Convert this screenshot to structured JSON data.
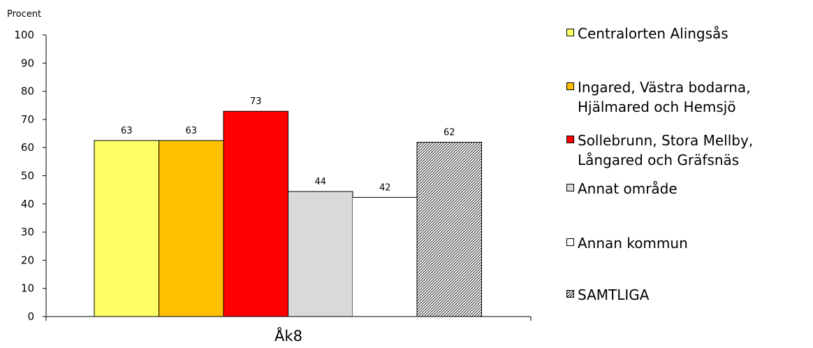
{
  "chart_data": {
    "type": "bar",
    "ylabel": "Procent",
    "ylim": [
      0,
      100
    ],
    "yticks": [
      0,
      10,
      20,
      30,
      40,
      50,
      60,
      70,
      80,
      90,
      100
    ],
    "categories": [
      "Åk8"
    ],
    "grid": false,
    "legend_position": "right",
    "series": [
      {
        "name": "Centralorten Alingsås",
        "values": [
          62.5
        ],
        "label": "63",
        "color": "#FFFF66",
        "pattern": "solid"
      },
      {
        "name": "Ingared, Västra bodarna, Hjälmared och Hemsjö",
        "values": [
          62.5
        ],
        "label": "63",
        "color": "#FFC000",
        "pattern": "solid"
      },
      {
        "name": "Sollebrunn, Stora Mellby, Långared och Gräfsnäs",
        "values": [
          72.9
        ],
        "label": "73",
        "color": "#FF0000",
        "pattern": "solid"
      },
      {
        "name": "Annat område",
        "values": [
          44.4
        ],
        "label": "44",
        "color": "#D9D9D9",
        "pattern": "solid"
      },
      {
        "name": "Annan kommun",
        "values": [
          42.3
        ],
        "label": "42",
        "color": "#FFFFFF",
        "pattern": "solid"
      },
      {
        "name": "SAMTLIGA",
        "values": [
          61.9
        ],
        "label": "62",
        "color": "#FFFFFF",
        "pattern": "hatch"
      }
    ]
  },
  "legend": {
    "items": [
      {
        "label": "Centralorten Alingsås"
      },
      {
        "label": "Ingared, Västra bodarna,\nHjälmared och Hemsjö"
      },
      {
        "label": "Sollebrunn, Stora Mellby,\nLångared och Gräfsnäs"
      },
      {
        "label": "Annat område"
      },
      {
        "label": "Annan kommun"
      },
      {
        "label": "SAMTLIGA"
      }
    ]
  }
}
